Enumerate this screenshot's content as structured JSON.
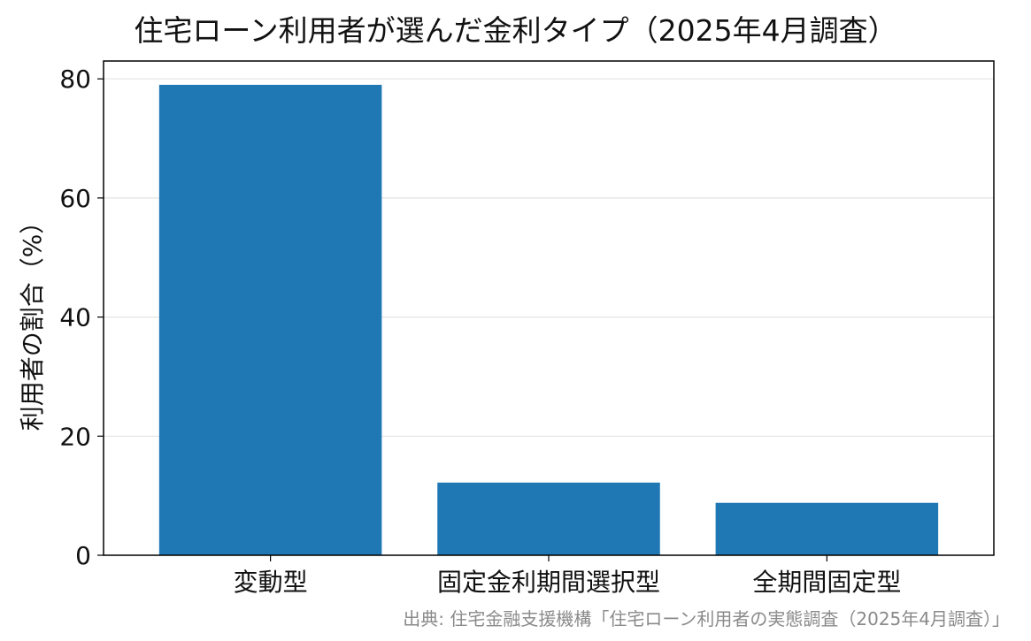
{
  "chart_data": {
    "type": "bar",
    "title": "住宅ローン利用者が選んだ金利タイプ（2025年4月調査）",
    "xlabel": "",
    "ylabel": "利用者の割合（%）",
    "categories": [
      "変動型",
      "固定金利期間選択型",
      "全期間固定型"
    ],
    "values": [
      79.0,
      12.2,
      8.8
    ],
    "ylim": [
      0,
      83
    ],
    "yticks": [
      0,
      20,
      40,
      60,
      80
    ],
    "grid": "y",
    "legend": "none",
    "bar_color": "#1f77b4",
    "source": "出典: 住宅金融支援機構「住宅ローン利用者の実態調査（2025年4月調査）」"
  }
}
